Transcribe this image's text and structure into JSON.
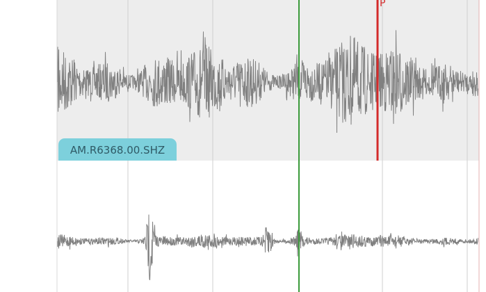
{
  "traces": [
    {
      "station": "AM.R6368.00.SHZ",
      "selected": true
    },
    {
      "station": "",
      "selected": false
    }
  ],
  "picks": [
    {
      "phase": "P",
      "color": "#d42a2a"
    }
  ],
  "cursor_color": "#3a9a3a",
  "colors": {
    "selected_bg": "#ededed",
    "waveform": "#808080",
    "label_bg": "#7dd0dc",
    "grid": "#cfcfcf"
  }
}
